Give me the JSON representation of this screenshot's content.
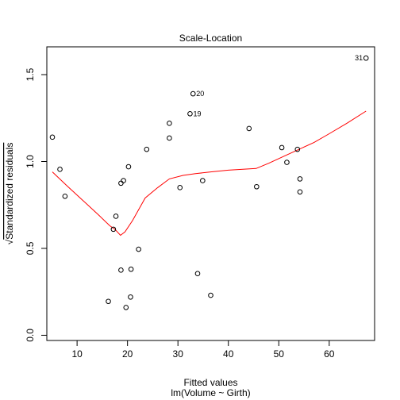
{
  "chart_data": {
    "type": "scatter",
    "title": "Scale-Location",
    "xlabel": "Fitted values",
    "xlabel_sub": "lm(Volume ~ Girth)",
    "ylabel_sqrt": "√",
    "ylabel": "Standardized residuals",
    "xlim": [
      4,
      69
    ],
    "ylim": [
      -0.03,
      1.66
    ],
    "x_ticks": [
      10,
      20,
      30,
      40,
      50,
      60
    ],
    "y_ticks": [
      0.0,
      0.5,
      1.0,
      1.5
    ],
    "y_tick_labels": [
      "0.0",
      "0.5",
      "1.0",
      "1.5"
    ],
    "points": [
      {
        "x": 5.1,
        "y": 1.14
      },
      {
        "x": 6.6,
        "y": 0.955
      },
      {
        "x": 7.6,
        "y": 0.8
      },
      {
        "x": 16.2,
        "y": 0.195
      },
      {
        "x": 17.2,
        "y": 0.61
      },
      {
        "x": 17.7,
        "y": 0.685
      },
      {
        "x": 18.7,
        "y": 0.375
      },
      {
        "x": 18.7,
        "y": 0.875
      },
      {
        "x": 19.2,
        "y": 0.89
      },
      {
        "x": 19.7,
        "y": 0.16
      },
      {
        "x": 20.2,
        "y": 0.97
      },
      {
        "x": 20.6,
        "y": 0.22
      },
      {
        "x": 20.7,
        "y": 0.38
      },
      {
        "x": 22.2,
        "y": 0.495
      },
      {
        "x": 23.8,
        "y": 1.07
      },
      {
        "x": 28.3,
        "y": 1.135
      },
      {
        "x": 28.3,
        "y": 1.22
      },
      {
        "x": 30.4,
        "y": 0.85
      },
      {
        "x": 32.4,
        "y": 1.275,
        "label": "19"
      },
      {
        "x": 33.0,
        "y": 1.39,
        "label": "20"
      },
      {
        "x": 33.9,
        "y": 0.355
      },
      {
        "x": 34.9,
        "y": 0.89
      },
      {
        "x": 36.5,
        "y": 0.23
      },
      {
        "x": 44.1,
        "y": 1.19
      },
      {
        "x": 45.6,
        "y": 0.855
      },
      {
        "x": 50.6,
        "y": 1.08
      },
      {
        "x": 51.6,
        "y": 0.995
      },
      {
        "x": 53.7,
        "y": 1.07
      },
      {
        "x": 54.2,
        "y": 0.9
      },
      {
        "x": 54.2,
        "y": 0.825
      },
      {
        "x": 67.3,
        "y": 1.595,
        "label": "31"
      }
    ],
    "smooth_line": {
      "color": "#ff0000",
      "points": [
        [
          5.1,
          0.94
        ],
        [
          8.0,
          0.86
        ],
        [
          11.0,
          0.78
        ],
        [
          14.0,
          0.7
        ],
        [
          16.5,
          0.63
        ],
        [
          17.5,
          0.61
        ],
        [
          18.6,
          0.575
        ],
        [
          19.5,
          0.595
        ],
        [
          21.0,
          0.66
        ],
        [
          23.5,
          0.79
        ],
        [
          26.0,
          0.85
        ],
        [
          28.3,
          0.9
        ],
        [
          31.0,
          0.92
        ],
        [
          33.5,
          0.93
        ],
        [
          36.5,
          0.94
        ],
        [
          40.0,
          0.95
        ],
        [
          45.5,
          0.96
        ],
        [
          48.0,
          0.99
        ],
        [
          51.0,
          1.03
        ],
        [
          54.0,
          1.07
        ],
        [
          57.0,
          1.11
        ],
        [
          60.0,
          1.16
        ],
        [
          63.5,
          1.22
        ],
        [
          67.3,
          1.29
        ]
      ]
    },
    "grid": false,
    "legend": "none"
  }
}
